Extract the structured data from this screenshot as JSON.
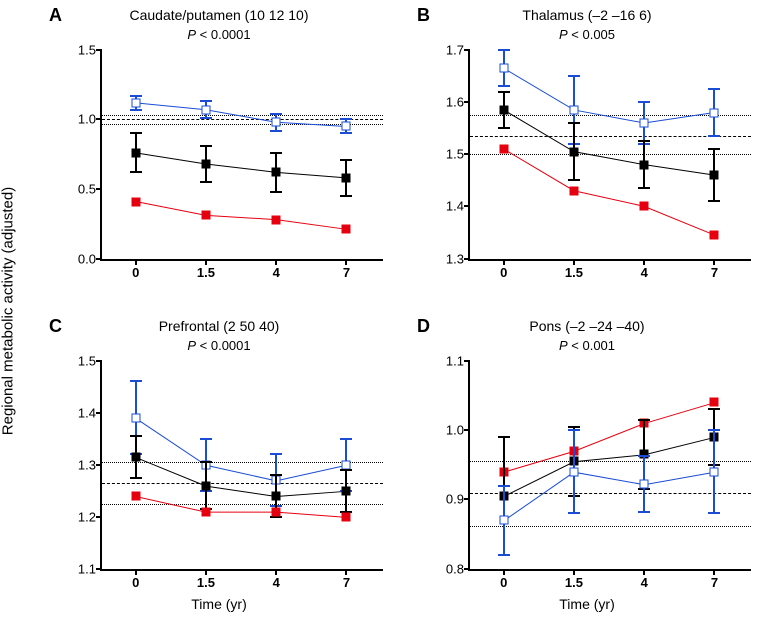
{
  "ylabel_global": "Regional metabolic activity (adjusted)",
  "xlabel": "Time (yr)",
  "x_categories": [
    "0",
    "1.5",
    "4",
    "7"
  ],
  "x_positions": [
    0.12,
    0.37,
    0.62,
    0.87
  ],
  "colors": {
    "blue": "#1a4cd6",
    "black": "#000000",
    "red": "#e6000f"
  },
  "panels": [
    {
      "letter": "A",
      "title": "Caudate/putamen (10 12 10)",
      "pvalue": "< 0.0001",
      "ymin": 0.0,
      "ymax": 1.5,
      "yticks": [
        0.0,
        0.5,
        1.0,
        1.5
      ],
      "ytick_labels": [
        "0.0",
        "0.5",
        "1.0",
        "1.5"
      ],
      "ref_mean": 1.0,
      "ref_hi": 1.03,
      "ref_lo": 0.97,
      "show_xlabel": false,
      "series": [
        {
          "color": "blue",
          "marker": "open",
          "y": [
            1.12,
            1.07,
            0.98,
            0.95
          ],
          "err": [
            0.05,
            0.06,
            0.06,
            0.05
          ]
        },
        {
          "color": "black",
          "marker": "filled",
          "y": [
            0.76,
            0.68,
            0.62,
            0.58
          ],
          "err": [
            0.14,
            0.13,
            0.14,
            0.13
          ]
        },
        {
          "color": "red",
          "marker": "filled",
          "y": [
            0.41,
            0.31,
            0.28,
            0.21
          ],
          "err": [
            0.0,
            0.0,
            0.0,
            0.0
          ]
        }
      ]
    },
    {
      "letter": "B",
      "title": "Thalamus (–2 –16 6)",
      "pvalue": "< 0.005",
      "ymin": 1.3,
      "ymax": 1.7,
      "yticks": [
        1.3,
        1.4,
        1.5,
        1.6,
        1.7
      ],
      "ytick_labels": [
        "1.3",
        "1.4",
        "1.5",
        "1.6",
        "1.7"
      ],
      "ref_mean": 1.535,
      "ref_hi": 1.575,
      "ref_lo": 1.5,
      "show_xlabel": false,
      "series": [
        {
          "color": "blue",
          "marker": "open",
          "y": [
            1.665,
            1.585,
            1.56,
            1.58
          ],
          "err": [
            0.035,
            0.065,
            0.04,
            0.045
          ]
        },
        {
          "color": "black",
          "marker": "filled",
          "y": [
            1.585,
            1.505,
            1.48,
            1.46
          ],
          "err": [
            0.035,
            0.055,
            0.045,
            0.05
          ]
        },
        {
          "color": "red",
          "marker": "filled",
          "y": [
            1.51,
            1.43,
            1.4,
            1.345
          ],
          "err": [
            0.0,
            0.0,
            0.0,
            0.0
          ]
        }
      ]
    },
    {
      "letter": "C",
      "title": "Prefrontal (2 50 40)",
      "pvalue": "< 0.0001",
      "ymin": 1.1,
      "ymax": 1.5,
      "yticks": [
        1.1,
        1.2,
        1.3,
        1.4,
        1.5
      ],
      "ytick_labels": [
        "1.1",
        "1.2",
        "1.3",
        "1.4",
        "1.5"
      ],
      "ref_mean": 1.265,
      "ref_hi": 1.305,
      "ref_lo": 1.225,
      "show_xlabel": true,
      "series": [
        {
          "color": "blue",
          "marker": "open",
          "y": [
            1.39,
            1.3,
            1.27,
            1.3
          ],
          "err": [
            0.07,
            0.05,
            0.05,
            0.05
          ]
        },
        {
          "color": "black",
          "marker": "filled",
          "y": [
            1.315,
            1.26,
            1.24,
            1.25
          ],
          "err": [
            0.04,
            0.045,
            0.04,
            0.04
          ]
        },
        {
          "color": "red",
          "marker": "filled",
          "y": [
            1.24,
            1.21,
            1.21,
            1.2
          ],
          "err": [
            0.0,
            0.0,
            0.0,
            0.0
          ]
        }
      ]
    },
    {
      "letter": "D",
      "title": "Pons (–2 –24 –40)",
      "pvalue": "< 0.001",
      "ymin": 0.8,
      "ymax": 1.1,
      "yticks": [
        0.8,
        0.9,
        1.0,
        1.1
      ],
      "ytick_labels": [
        "0.8",
        "0.9",
        "1.0",
        "1.1"
      ],
      "ref_mean": 0.91,
      "ref_hi": 0.955,
      "ref_lo": 0.862,
      "show_xlabel": true,
      "series": [
        {
          "color": "red",
          "marker": "filled",
          "y": [
            0.94,
            0.97,
            1.01,
            1.04
          ],
          "err": [
            0.0,
            0.0,
            0.0,
            0.0
          ]
        },
        {
          "color": "black",
          "marker": "filled",
          "y": [
            0.905,
            0.955,
            0.965,
            0.99
          ],
          "err": [
            0.085,
            0.05,
            0.05,
            0.04
          ]
        },
        {
          "color": "blue",
          "marker": "open",
          "y": [
            0.87,
            0.94,
            0.922,
            0.94
          ],
          "err": [
            0.05,
            0.06,
            0.04,
            0.06
          ]
        }
      ]
    }
  ]
}
